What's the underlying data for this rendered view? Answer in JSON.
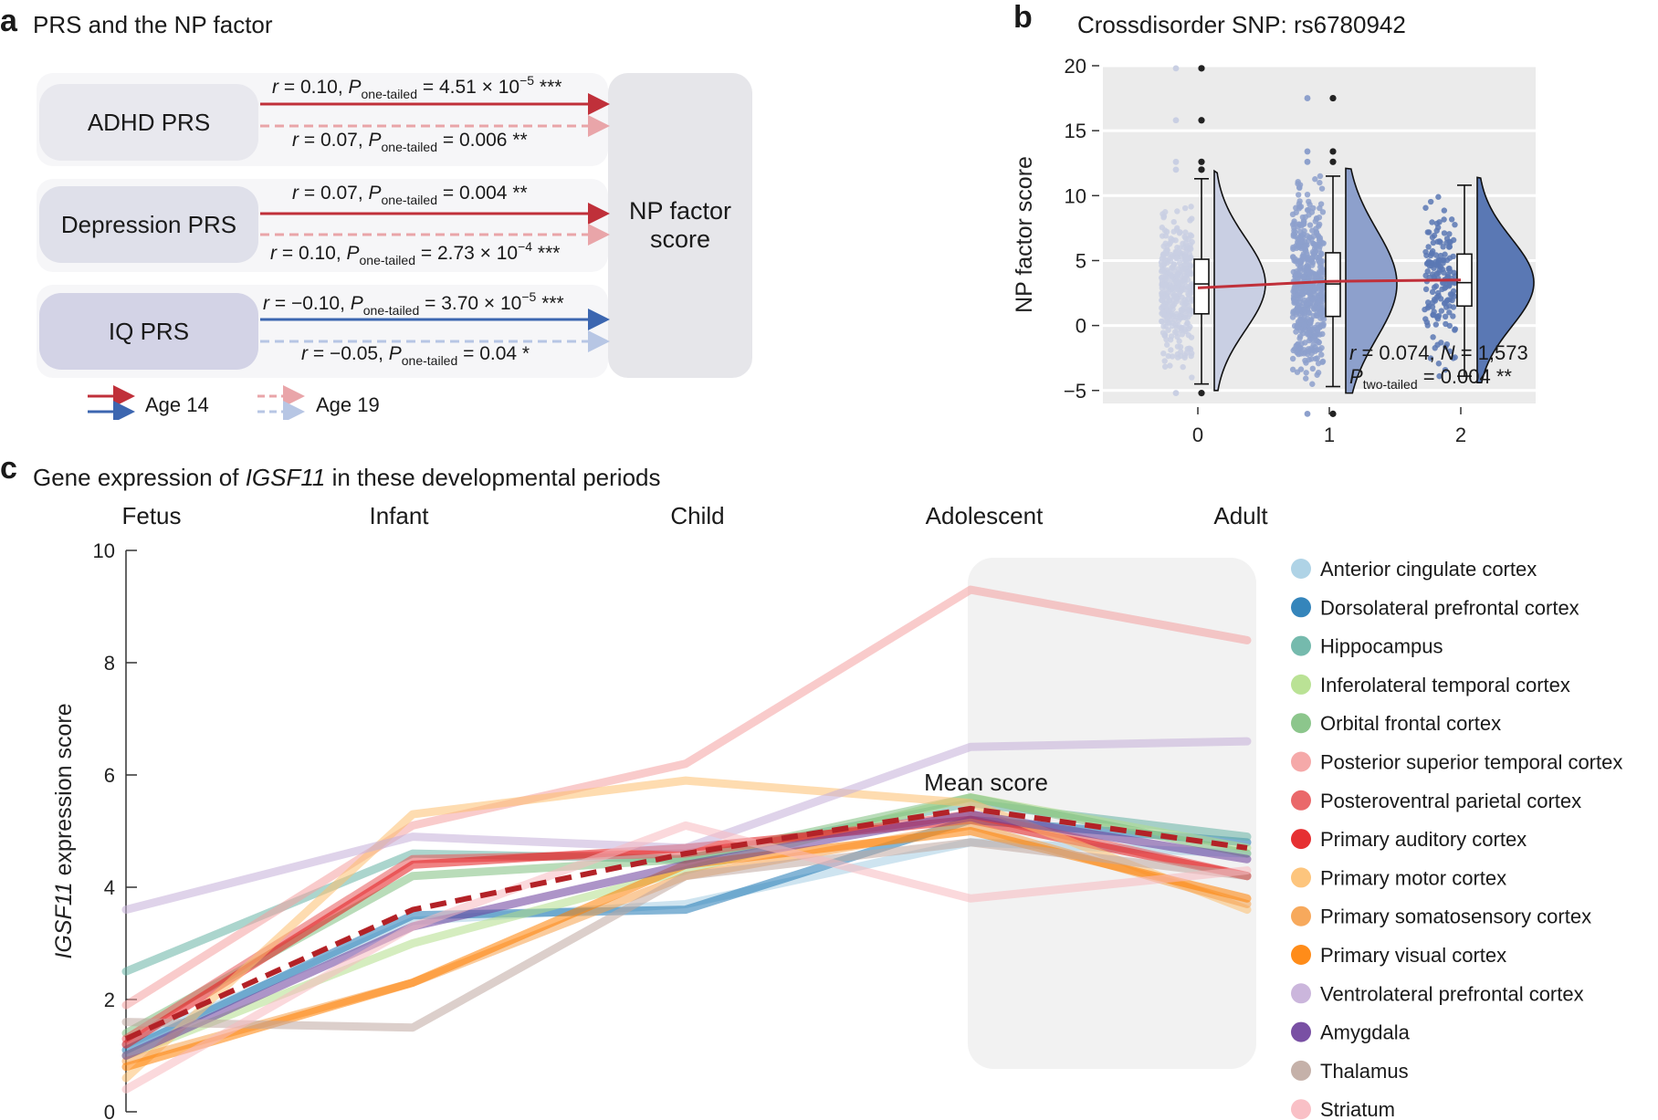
{
  "panel_a": {
    "letter": "a",
    "title": "PRS and the NP factor",
    "np_box": [
      "NP factor",
      "score"
    ],
    "rows": [
      {
        "label": "ADHD PRS",
        "box_color": "#e8e8ee",
        "age14": {
          "r": "0.10",
          "p": "4.51 × 10",
          "exp": "−5",
          "stars": "***",
          "color": "#c0303a"
        },
        "age19": {
          "r": "0.07",
          "p": "0.006",
          "exp": "",
          "stars": "**",
          "color": "#e9a5a9"
        }
      },
      {
        "label": "Depression PRS",
        "box_color": "#dfe0ea",
        "age14": {
          "r": "0.07",
          "p": "0.004",
          "exp": "",
          "stars": "**",
          "color": "#c0303a"
        },
        "age19": {
          "r": "0.10",
          "p": "2.73 × 10",
          "exp": "−4",
          "stars": "***",
          "color": "#e9a5a9"
        }
      },
      {
        "label": "IQ PRS",
        "box_color": "#d3d3e6",
        "age14": {
          "r": "−0.10",
          "p": "3.70 × 10",
          "exp": "−5",
          "stars": "***",
          "color": "#3c66b0"
        },
        "age19": {
          "r": "−0.05",
          "p": "0.04",
          "exp": "",
          "stars": "*",
          "color": "#b7c6e4"
        }
      }
    ],
    "r_label": "r",
    "p_label": "P",
    "p_sub": "one-tailed",
    "legend": {
      "age14": "Age 14",
      "age19": "Age 19"
    }
  },
  "panel_b": {
    "letter": "b",
    "title": "Crossdisorder SNP: rs6780942",
    "chart_data": {
      "type": "raincloud",
      "ylabel": "NP factor score",
      "ylim": [
        -6,
        20
      ],
      "yticks": [
        -5,
        0,
        5,
        10,
        15,
        20
      ],
      "categories": [
        "0",
        "1",
        "2"
      ],
      "box": [
        {
          "q1": 0.9,
          "median": 3.2,
          "q3": 5.1,
          "whisker_low": -4.5,
          "whisker_high": 11.3,
          "outliers": [
            -5.2,
            12.0,
            12.6,
            15.8,
            19.8
          ]
        },
        {
          "q1": 0.7,
          "median": 3.2,
          "q3": 5.6,
          "whisker_low": -4.7,
          "whisker_high": 11.5,
          "outliers": [
            -6.8,
            12.6,
            13.4,
            17.5
          ]
        },
        {
          "q1": 1.5,
          "median": 3.3,
          "q3": 5.5,
          "whisker_low": -3.9,
          "whisker_high": 10.8,
          "outliers": []
        }
      ],
      "trend": [
        2.9,
        3.4,
        3.5
      ],
      "colors": [
        "#c9cfe3",
        "#8da0cc",
        "#5a78b4"
      ],
      "annotation": {
        "r": "0.074",
        "N": "1,573",
        "p_sub": "two-tailed",
        "p": "0.004",
        "stars": "**"
      }
    }
  },
  "panel_c": {
    "letter": "c",
    "title_pre": "Gene expression of ",
    "title_gene": "IGSF11",
    "title_post": " in these developmental periods",
    "chart_data": {
      "type": "line",
      "x": [
        "Fetus",
        "Infant",
        "Child",
        "Adolescent",
        "Adult"
      ],
      "ylabel_gene": "IGSF11",
      "ylabel_rest": " expression score",
      "ylim": [
        0,
        10
      ],
      "yticks": [
        0,
        2,
        4,
        6,
        8,
        10
      ],
      "mean_label": "Mean score",
      "series": [
        {
          "name": "Anterior cingulate cortex",
          "color": "#a6cee3",
          "values": [
            1.2,
            3.4,
            3.7,
            4.8,
            4.6
          ]
        },
        {
          "name": "Dorsolateral prefrontal cortex",
          "color": "#1f78b4",
          "values": [
            1.1,
            3.5,
            3.6,
            5.2,
            4.8
          ]
        },
        {
          "name": "Hippocampus",
          "color": "#66b2a4",
          "values": [
            2.5,
            4.6,
            4.5,
            5.5,
            4.9
          ]
        },
        {
          "name": "Inferolateral temporal cortex",
          "color": "#b2df8a",
          "values": [
            1.0,
            3.0,
            4.3,
            5.6,
            4.7
          ]
        },
        {
          "name": "Orbital frontal cortex",
          "color": "#80c080",
          "values": [
            1.4,
            4.2,
            4.5,
            5.6,
            4.6
          ]
        },
        {
          "name": "Posterior superior temporal cortex",
          "color": "#f4a0a0",
          "values": [
            1.9,
            5.1,
            6.2,
            9.3,
            8.4
          ]
        },
        {
          "name": "Posteroventral parietal cortex",
          "color": "#e8585a",
          "values": [
            1.3,
            4.5,
            4.6,
            5.3,
            4.2
          ]
        },
        {
          "name": "Primary auditory cortex",
          "color": "#e31a1c",
          "values": [
            1.2,
            4.4,
            4.7,
            5.2,
            4.2
          ]
        },
        {
          "name": "Primary motor cortex",
          "color": "#fdbf6f",
          "values": [
            0.6,
            5.3,
            5.9,
            5.5,
            3.6
          ]
        },
        {
          "name": "Primary somatosensory cortex",
          "color": "#f6a04a",
          "values": [
            0.9,
            2.3,
            4.2,
            5.1,
            3.7
          ]
        },
        {
          "name": "Primary visual cortex",
          "color": "#ff7f00",
          "values": [
            0.8,
            2.3,
            4.4,
            5.0,
            3.8
          ]
        },
        {
          "name": "Ventrolateral prefrontal cortex",
          "color": "#c5aed8",
          "values": [
            3.6,
            4.9,
            4.7,
            6.5,
            6.6
          ]
        },
        {
          "name": "Amygdala",
          "color": "#6a3d9a",
          "values": [
            1.0,
            3.3,
            4.4,
            5.3,
            4.5
          ]
        },
        {
          "name": "Thalamus",
          "color": "#bfa8a0",
          "values": [
            1.6,
            1.5,
            4.2,
            4.8,
            4.2
          ]
        },
        {
          "name": "Striatum",
          "color": "#f8b9c0",
          "values": [
            0.4,
            3.3,
            5.1,
            3.8,
            4.3
          ]
        }
      ],
      "mean": {
        "color": "#b32227",
        "values": [
          1.3,
          3.6,
          4.6,
          5.4,
          4.7
        ]
      }
    }
  }
}
